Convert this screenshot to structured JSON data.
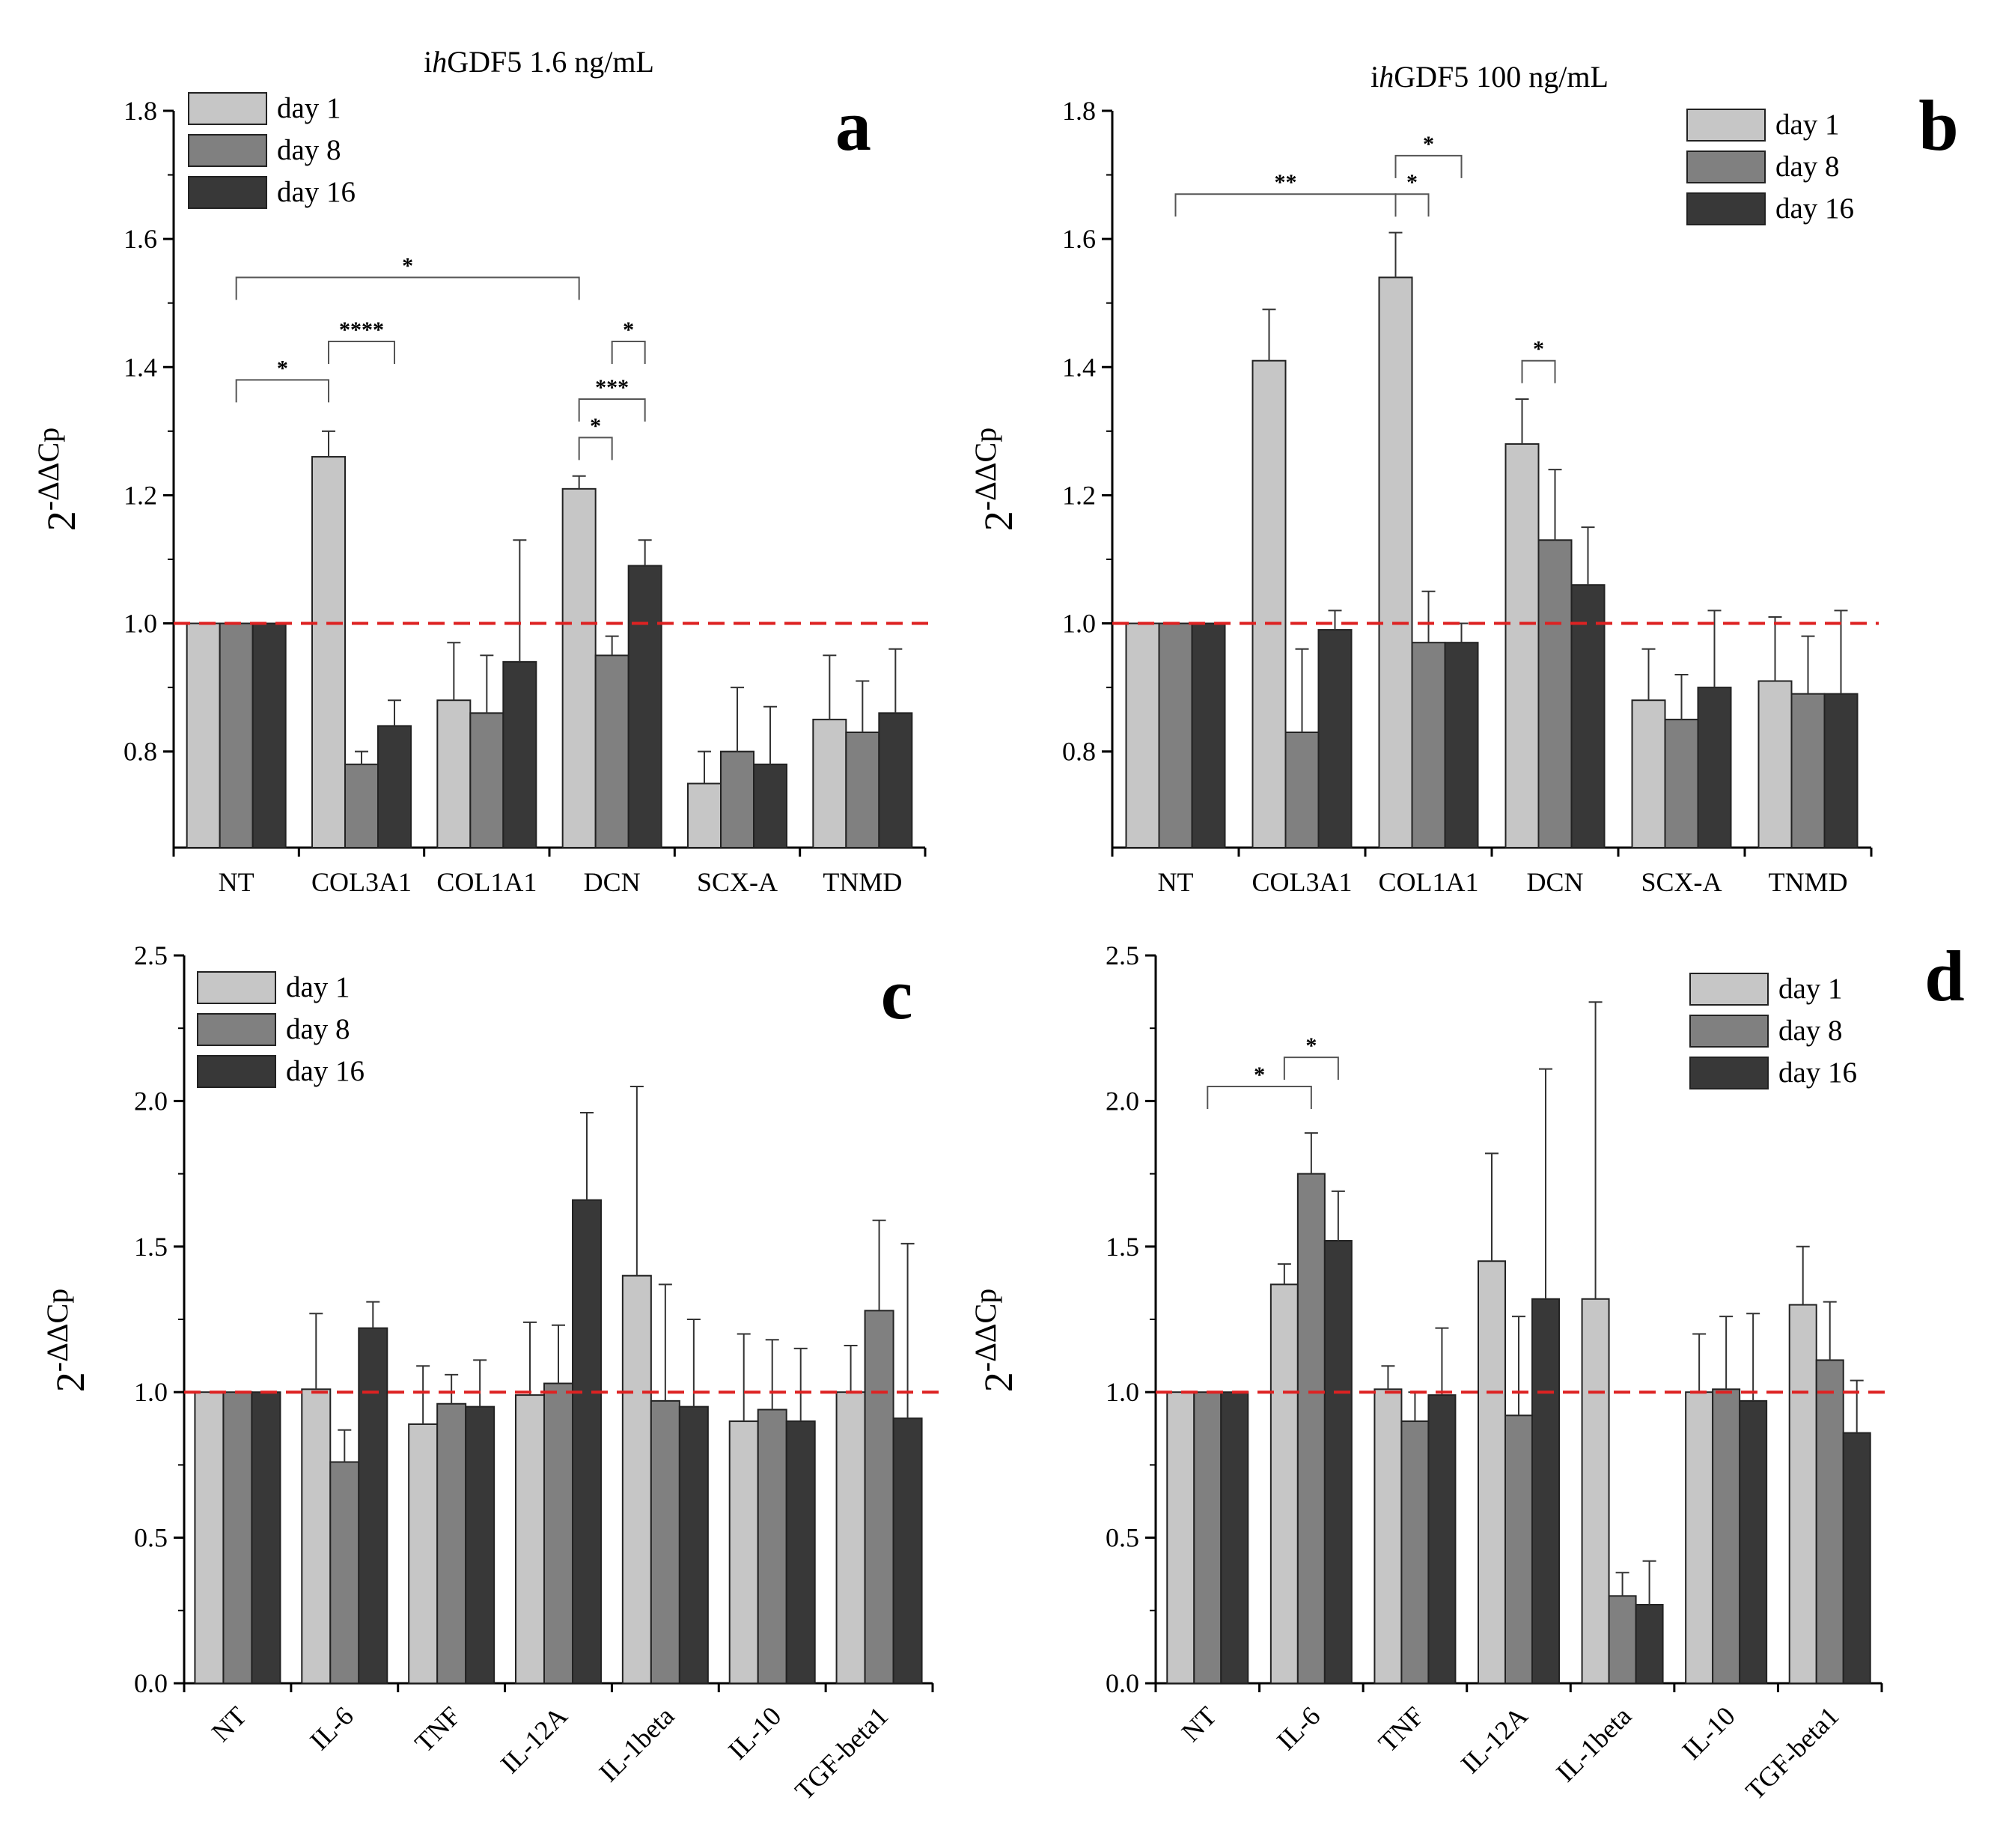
{
  "figure": {
    "colors": {
      "day1": "#c6c6c6",
      "day8": "#808080",
      "day16": "#383838",
      "reference_line": "#dd2222"
    },
    "legend_labels": [
      "day 1",
      "day 8",
      "day 16"
    ]
  },
  "chart_data": [
    {
      "panel": "a",
      "type": "bar",
      "title": "ihGDF5 1.6 ng/mL",
      "title_parts": {
        "prefix": "i",
        "italic": "h",
        "rest": "GDF5 1.6 ng/mL"
      },
      "ylabel": "2-ΔΔCp",
      "ylabel_parts": {
        "base": "2",
        "sup": "-ΔΔCp"
      },
      "ylim": [
        0.65,
        1.8
      ],
      "yticks": [
        0.8,
        1.0,
        1.2,
        1.4,
        1.6,
        1.8
      ],
      "tick_labels": [
        "0.8",
        "1.0",
        "1.2",
        "1.4",
        "1.6",
        "1.8"
      ],
      "reference_line": 1.0,
      "categories": [
        "NT",
        "COL3A1",
        "COL1A1",
        "DCN",
        "SCX-A",
        "TNMD"
      ],
      "series": [
        {
          "name": "day 1",
          "values": [
            1.0,
            1.26,
            0.88,
            1.21,
            0.75,
            0.85
          ],
          "errors": [
            0,
            0.04,
            0.09,
            0.02,
            0.05,
            0.1
          ]
        },
        {
          "name": "day 8",
          "values": [
            1.0,
            0.78,
            0.86,
            0.95,
            0.8,
            0.83
          ],
          "errors": [
            0,
            0.02,
            0.09,
            0.03,
            0.1,
            0.08
          ]
        },
        {
          "name": "day 16",
          "values": [
            1.0,
            0.84,
            0.94,
            1.09,
            0.78,
            0.86
          ],
          "errors": [
            0,
            0.04,
            0.19,
            0.04,
            0.09,
            0.1
          ]
        }
      ],
      "significance": [
        {
          "label": "*",
          "from": [
            0,
            1
          ],
          "to": [
            1,
            0
          ],
          "y": 1.38
        },
        {
          "label": "****",
          "from": [
            1,
            0
          ],
          "to": [
            1,
            2
          ],
          "y": 1.44
        },
        {
          "label": "*",
          "from": [
            0,
            1
          ],
          "to": [
            3,
            0
          ],
          "y": 1.54
        },
        {
          "label": "*",
          "from": [
            3,
            0
          ],
          "to": [
            3,
            1
          ],
          "y": 1.29
        },
        {
          "label": "***",
          "from": [
            3,
            0
          ],
          "to": [
            3,
            2
          ],
          "y": 1.35
        },
        {
          "label": "*",
          "from": [
            3,
            1
          ],
          "to": [
            3,
            2
          ],
          "y": 1.44
        }
      ],
      "legend": "top-left"
    },
    {
      "panel": "b",
      "type": "bar",
      "title": "ihGDF5 100 ng/mL",
      "title_parts": {
        "prefix": "i",
        "italic": "h",
        "rest": "GDF5 100 ng/mL"
      },
      "ylabel": "2-ΔΔCp",
      "ylabel_parts": {
        "base": "2",
        "sup": "-ΔΔCp"
      },
      "ylim": [
        0.65,
        1.8
      ],
      "yticks": [
        0.8,
        1.0,
        1.2,
        1.4,
        1.6,
        1.8
      ],
      "tick_labels": [
        "0.8",
        "1.0",
        "1.2",
        "1.4",
        "1.6",
        "1.8"
      ],
      "reference_line": 1.0,
      "categories": [
        "NT",
        "COL3A1",
        "COL1A1",
        "DCN",
        "SCX-A",
        "TNMD"
      ],
      "series": [
        {
          "name": "day 1",
          "values": [
            1.0,
            1.41,
            1.54,
            1.28,
            0.88,
            0.91
          ],
          "errors": [
            0,
            0.08,
            0.07,
            0.07,
            0.08,
            0.1
          ]
        },
        {
          "name": "day 8",
          "values": [
            1.0,
            0.83,
            0.97,
            1.13,
            0.85,
            0.89
          ],
          "errors": [
            0,
            0.13,
            0.08,
            0.11,
            0.07,
            0.09
          ]
        },
        {
          "name": "day 16",
          "values": [
            1.0,
            0.99,
            0.97,
            1.06,
            0.9,
            0.89
          ],
          "errors": [
            0,
            0.03,
            0.03,
            0.09,
            0.12,
            0.13
          ]
        }
      ],
      "significance": [
        {
          "label": "**",
          "from": [
            0,
            1
          ],
          "to": [
            2,
            0
          ],
          "y": 1.67
        },
        {
          "label": "*",
          "from": [
            2,
            0
          ],
          "to": [
            2,
            1
          ],
          "y": 1.67
        },
        {
          "label": "*",
          "from": [
            2,
            0
          ],
          "to": [
            2,
            2
          ],
          "y": 1.73
        },
        {
          "label": "*",
          "from": [
            3,
            0
          ],
          "to": [
            3,
            1
          ],
          "y": 1.41
        }
      ],
      "legend": "top-right"
    },
    {
      "panel": "c",
      "type": "bar",
      "title": "",
      "ylabel": "2-ΔΔCp",
      "ylabel_parts": {
        "base": "2",
        "sup": "-ΔΔCp"
      },
      "ylim": [
        0.0,
        2.5
      ],
      "yticks": [
        0.0,
        0.5,
        1.0,
        1.5,
        2.0,
        2.5
      ],
      "tick_labels": [
        "0.0",
        "0.5",
        "1.0",
        "1.5",
        "2.0",
        "2.5"
      ],
      "reference_line": 1.0,
      "categories": [
        "NT",
        "IL-6",
        "TNF",
        "IL-12A",
        "IL-1beta",
        "IL-10",
        "TGF-beta1"
      ],
      "series": [
        {
          "name": "day 1",
          "values": [
            1.0,
            1.01,
            0.89,
            0.99,
            1.4,
            0.9,
            1.0
          ],
          "errors": [
            0,
            0.26,
            0.2,
            0.25,
            0.65,
            0.3,
            0.16
          ]
        },
        {
          "name": "day 8",
          "values": [
            1.0,
            0.76,
            0.96,
            1.03,
            0.97,
            0.94,
            1.28
          ],
          "errors": [
            0,
            0.11,
            0.1,
            0.2,
            0.4,
            0.24,
            0.31
          ]
        },
        {
          "name": "day 16",
          "values": [
            1.0,
            1.22,
            0.95,
            1.66,
            0.95,
            0.9,
            0.91
          ],
          "errors": [
            0,
            0.09,
            0.16,
            0.3,
            0.3,
            0.25,
            0.6
          ]
        }
      ],
      "significance": [],
      "legend": "top-left"
    },
    {
      "panel": "d",
      "type": "bar",
      "title": "",
      "ylabel": "2-ΔΔCp",
      "ylabel_parts": {
        "base": "2",
        "sup": "-ΔΔCp"
      },
      "ylim": [
        0.0,
        2.5
      ],
      "yticks": [
        0.0,
        0.5,
        1.0,
        1.5,
        2.0,
        2.5
      ],
      "tick_labels": [
        "0.0",
        "0.5",
        "1.0",
        "1.5",
        "2.0",
        "2.5"
      ],
      "reference_line": 1.0,
      "categories": [
        "NT",
        "IL-6",
        "TNF",
        "IL-12A",
        "IL-1beta",
        "IL-10",
        "TGF-beta1"
      ],
      "series": [
        {
          "name": "day 1",
          "values": [
            1.0,
            1.37,
            1.01,
            1.45,
            1.32,
            1.0,
            1.3
          ],
          "errors": [
            0,
            0.07,
            0.08,
            0.37,
            1.02,
            0.2,
            0.2
          ]
        },
        {
          "name": "day 8",
          "values": [
            1.0,
            1.75,
            0.9,
            0.92,
            0.3,
            1.01,
            1.11
          ],
          "errors": [
            0,
            0.14,
            0.1,
            0.34,
            0.08,
            0.25,
            0.2
          ]
        },
        {
          "name": "day 16",
          "values": [
            1.0,
            1.52,
            0.99,
            1.32,
            0.27,
            0.97,
            0.86
          ],
          "errors": [
            0,
            0.17,
            0.23,
            0.79,
            0.15,
            0.3,
            0.18
          ]
        }
      ],
      "significance": [
        {
          "label": "*",
          "from": [
            0,
            1
          ],
          "to": [
            1,
            1
          ],
          "y": 2.05
        },
        {
          "label": "*",
          "from": [
            1,
            0
          ],
          "to": [
            1,
            2
          ],
          "y": 2.15
        }
      ],
      "legend": "top-right"
    }
  ]
}
